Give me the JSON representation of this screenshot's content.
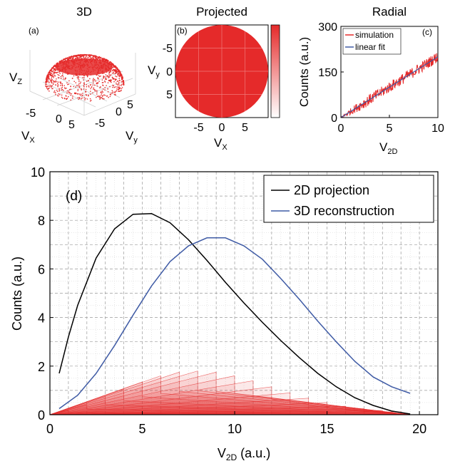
{
  "colors": {
    "red": "#e52a2a",
    "red_light": "#f6b4b4",
    "black": "#000000",
    "blue": "#3f5ba5",
    "grid": "#9a9a9a"
  },
  "chart_data": [
    {
      "type": "scatter",
      "panel": "(a)",
      "title": "3D",
      "xlabel": "V",
      "xlabel_sub": "X",
      "ylabel": "V",
      "ylabel_sub": "y",
      "zlabel": "V",
      "zlabel_sub": "Z",
      "x_ticks": [
        "-5",
        "0",
        "5"
      ],
      "y_ticks": [
        "-5",
        "0",
        "5"
      ],
      "shape": "hemisphere"
    },
    {
      "type": "heatmap",
      "panel": "(b)",
      "title": "Projected",
      "xlabel": "V",
      "xlabel_sub": "X",
      "ylabel": "V",
      "ylabel_sub": "y",
      "x_ticks": [
        "-5",
        "0",
        "5"
      ],
      "y_ticks": [
        "-5",
        "0",
        "5"
      ],
      "xlim": [
        -10,
        10
      ],
      "ylim": [
        -10,
        10
      ],
      "shape": "disk",
      "radius": 10,
      "colorbar": true
    },
    {
      "type": "line",
      "panel": "(c)",
      "title": "Radial",
      "xlabel": "V",
      "xlabel_sub": "2D",
      "ylabel": "Counts (a.u.)",
      "xlim": [
        0,
        10
      ],
      "ylim": [
        0,
        300
      ],
      "x_ticks": [
        0,
        5,
        10
      ],
      "y_ticks": [
        0,
        150,
        300
      ],
      "legend": "top-right",
      "series": [
        {
          "name": "simulation",
          "color": "#e52a2a",
          "x": [
            0,
            10
          ],
          "y": [
            0,
            200
          ],
          "noise": 18
        },
        {
          "name": "linear fit",
          "color": "#3f5ba5",
          "x": [
            0,
            10
          ],
          "y": [
            0,
            200
          ]
        }
      ]
    },
    {
      "type": "line",
      "panel": "(d)",
      "xlabel": "V",
      "xlabel_sub": "2D",
      "xlabel_suffix": " (a.u.)",
      "ylabel": "Counts (a.u.)",
      "xlim": [
        0,
        21
      ],
      "ylim": [
        0,
        10
      ],
      "x_ticks": [
        0,
        5,
        10,
        15,
        20
      ],
      "y_ticks": [
        0,
        2,
        4,
        6,
        8,
        10
      ],
      "grid": true,
      "legend": "top-right",
      "series": [
        {
          "name": "2D projection",
          "color": "#000000",
          "x": [
            0.5,
            1,
            1.5,
            2.5,
            3.5,
            4.5,
            5.5,
            6.5,
            7.5,
            8.5,
            9.5,
            10.5,
            11.5,
            12.5,
            13.5,
            14.5,
            15.5,
            16.5,
            17.5,
            18.5,
            19.5
          ],
          "y": [
            1.7,
            3.2,
            4.5,
            6.45,
            7.65,
            8.25,
            8.28,
            7.9,
            7.2,
            6.35,
            5.45,
            4.6,
            3.8,
            3.05,
            2.35,
            1.7,
            1.15,
            0.7,
            0.38,
            0.15,
            0.03
          ]
        },
        {
          "name": "3D reconstruction",
          "color": "#3f5ba5",
          "x": [
            0.5,
            1.5,
            2.5,
            3.5,
            4.5,
            5.5,
            6.5,
            7.5,
            8.5,
            9.5,
            10.5,
            11.5,
            12.5,
            13.5,
            14.5,
            15.5,
            16.5,
            17.5,
            18.5,
            19.5
          ],
          "y": [
            0.25,
            0.8,
            1.7,
            2.85,
            4.1,
            5.3,
            6.3,
            6.95,
            7.28,
            7.28,
            6.95,
            6.4,
            5.6,
            4.75,
            3.85,
            3.0,
            2.2,
            1.55,
            1.15,
            0.88
          ]
        }
      ],
      "shells": {
        "note": "stack of red triangular shell contributions",
        "peak_x": [
          1,
          2,
          3,
          4,
          5,
          6,
          7,
          8,
          9,
          10,
          11,
          12,
          13,
          14,
          15,
          16,
          17,
          18,
          19
        ],
        "peak_y": [
          0.18,
          0.42,
          0.75,
          1.05,
          1.35,
          1.6,
          1.75,
          1.8,
          1.75,
          1.6,
          1.4,
          1.15,
          0.9,
          0.68,
          0.5,
          0.35,
          0.25,
          0.18,
          0.12
        ],
        "end_x": 19.5
      }
    }
  ]
}
